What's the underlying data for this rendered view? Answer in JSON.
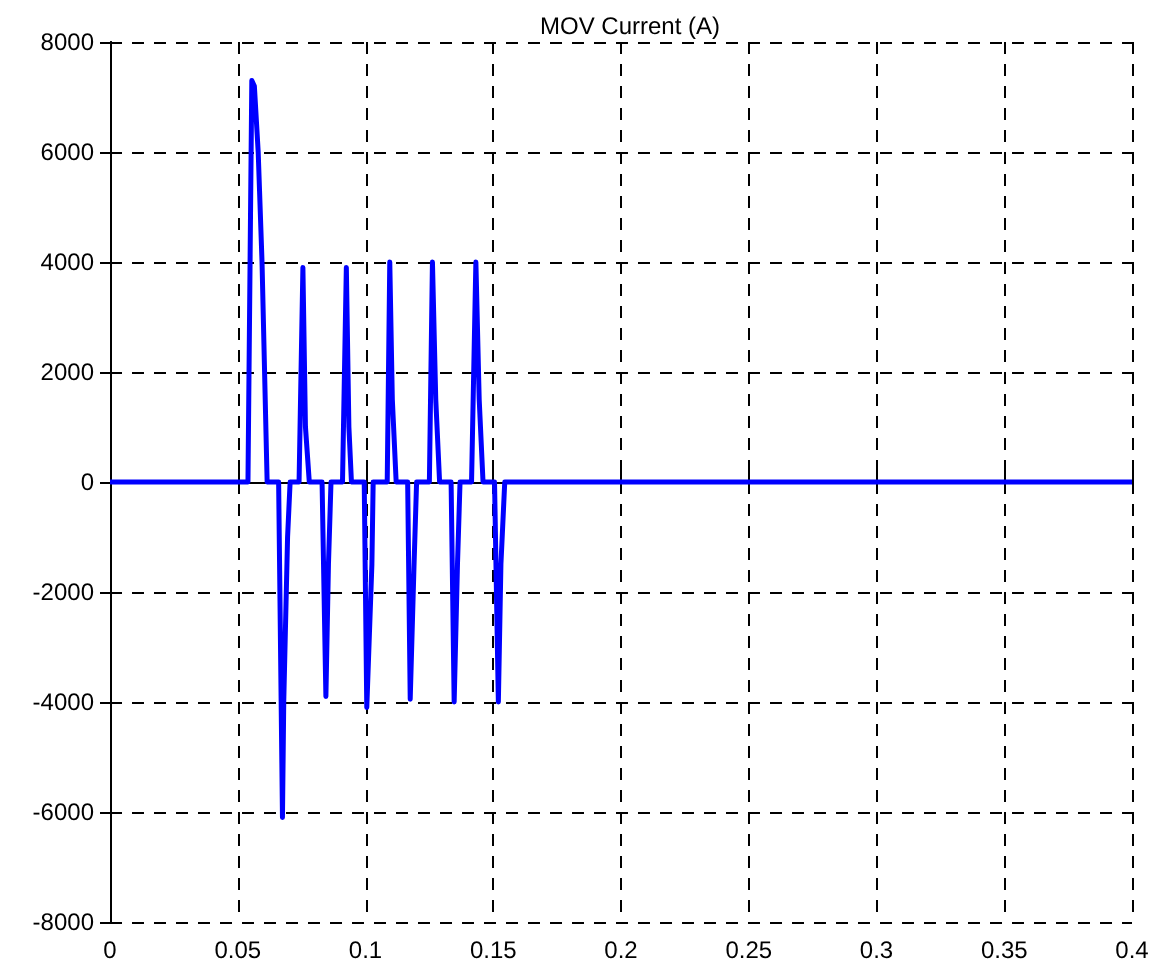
{
  "chart_data": {
    "type": "line",
    "title": "MOV Current (A)",
    "xlim": [
      0,
      0.4
    ],
    "xticks": [
      0,
      0.05,
      0.1,
      0.15,
      0.2,
      0.25,
      0.3,
      0.35,
      0.4
    ],
    "ylim": [
      -8000,
      8000
    ],
    "yticks": [
      -8000,
      -6000,
      -4000,
      -2000,
      0,
      2000,
      4000,
      6000,
      8000
    ],
    "grid": true,
    "marker": "none",
    "line_style": "solid",
    "x": [
      0,
      0.054,
      0.0555,
      0.0565,
      0.058,
      0.0595,
      0.0615,
      0.066,
      0.0675,
      0.068,
      0.0695,
      0.0705,
      0.074,
      0.0755,
      0.0765,
      0.078,
      0.083,
      0.0845,
      0.0855,
      0.0865,
      0.091,
      0.0925,
      0.0935,
      0.0945,
      0.0995,
      0.1005,
      0.1025,
      0.103,
      0.1085,
      0.1095,
      0.1105,
      0.112,
      0.1165,
      0.1175,
      0.119,
      0.12,
      0.125,
      0.1262,
      0.1275,
      0.129,
      0.1335,
      0.1347,
      0.136,
      0.137,
      0.1415,
      0.1432,
      0.1445,
      0.146,
      0.1505,
      0.152,
      0.153,
      0.1545,
      0.4
    ],
    "series": [
      {
        "color": "#0000ff",
        "values": [
          0,
          0,
          7300,
          7200,
          6000,
          4000,
          0,
          0,
          -6100,
          -4000,
          -1000,
          0,
          0,
          3900,
          1000,
          0,
          0,
          -3900,
          -1500,
          0,
          0,
          3900,
          1000,
          0,
          0,
          -4100,
          -1500,
          0,
          0,
          4000,
          1500,
          0,
          0,
          -3950,
          -1500,
          0,
          0,
          4000,
          1500,
          0,
          0,
          -4000,
          -1500,
          0,
          0,
          4000,
          1500,
          0,
          0,
          -4000,
          -1500,
          0,
          0
        ]
      }
    ]
  }
}
